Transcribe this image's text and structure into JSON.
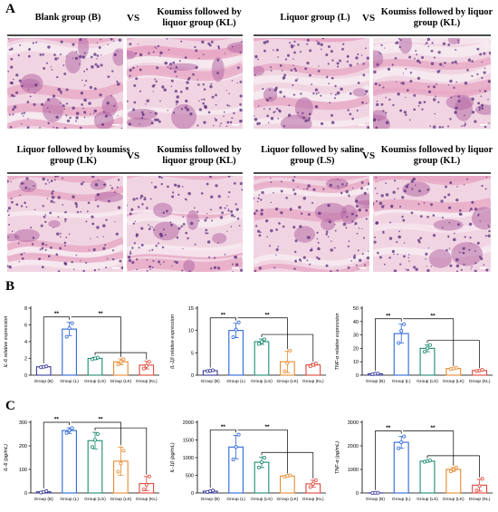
{
  "panels": {
    "A": {
      "letter": "A"
    },
    "B": {
      "letter": "B"
    },
    "C": {
      "letter": "C"
    }
  },
  "histology": {
    "vs_label": "VS",
    "pair1": {
      "left": "Blank group (B)",
      "right": "Koumiss followed by liquor group (KL)"
    },
    "pair2": {
      "left": "Liquor group (L)",
      "right": "Koumiss followed by liquor group (KL)"
    },
    "pair3": {
      "left": "Liquor followed by koumiss group (LK)",
      "right": "Koumiss followed by liquor group (KL)"
    },
    "pair4": {
      "left": "Liquor followed by saline group (LS)",
      "right": "Koumiss followed by liquor group (KL)"
    }
  },
  "colors": {
    "B": "#3b3b9a",
    "L": "#2c66d9",
    "LS": "#1e8c72",
    "LK": "#e88a2e",
    "KL": "#e0483a"
  },
  "chart_data": [
    {
      "id": "il6_expr",
      "type": "bar",
      "categories": [
        "Group (B)",
        "Group (L)",
        "Group (LS)",
        "Group (LK)",
        "Group (KL)"
      ],
      "values": [
        1.0,
        5.5,
        2.0,
        1.6,
        1.2
      ],
      "errors": [
        0.1,
        0.8,
        0.15,
        0.35,
        0.45
      ],
      "points": [
        [
          0.95,
          1.0,
          1.05
        ],
        [
          4.6,
          5.6,
          6.2
        ],
        [
          1.9,
          2.0,
          2.1
        ],
        [
          1.3,
          1.6,
          1.9
        ],
        [
          0.8,
          1.1,
          1.6
        ]
      ],
      "ylabel": "IL-6 relative expression",
      "ylim": [
        0,
        8
      ],
      "yticks": [
        0,
        2,
        4,
        6,
        8
      ],
      "sig_label": "**"
    },
    {
      "id": "il1b_expr",
      "type": "bar",
      "categories": [
        "Group (B)",
        "Group (L)",
        "Group (LS)",
        "Group (LK)",
        "Group (KL)"
      ],
      "values": [
        1.0,
        10.0,
        7.5,
        3.0,
        2.3
      ],
      "errors": [
        0.1,
        1.6,
        0.6,
        2.4,
        0.3
      ],
      "points": [
        [
          0.9,
          1.0,
          1.1
        ],
        [
          8.5,
          10.2,
          11.8
        ],
        [
          7.0,
          7.4,
          8.0
        ],
        [
          0.8,
          2.7,
          5.5
        ],
        [
          2.0,
          2.3,
          2.6
        ]
      ],
      "ylabel": "IL-1β relative expression",
      "ylim": [
        0,
        15
      ],
      "yticks": [
        0,
        5,
        10,
        15
      ],
      "sig_label": "**"
    },
    {
      "id": "tnfa_expr",
      "type": "bar",
      "categories": [
        "Group (B)",
        "Group (L)",
        "Group (LS)",
        "Group (LK)",
        "Group (KL)"
      ],
      "values": [
        1.0,
        31.0,
        20.0,
        5.0,
        3.5
      ],
      "errors": [
        0.2,
        7.0,
        2.5,
        0.5,
        0.5
      ],
      "points": [
        [
          0.8,
          1.0,
          1.2
        ],
        [
          24,
          33,
          38
        ],
        [
          17.5,
          20,
          22.5
        ],
        [
          4.6,
          5.0,
          5.4
        ],
        [
          3.0,
          3.5,
          4.0
        ]
      ],
      "ylabel": "TNF-α relative expression",
      "ylim": [
        0,
        50
      ],
      "yticks": [
        0,
        10,
        20,
        30,
        40,
        50
      ],
      "sig_label": "**"
    },
    {
      "id": "il6_pg",
      "type": "bar",
      "categories": [
        "Group (B)",
        "Group (L)",
        "Group (LS)",
        "Group (LK)",
        "Group (KL)"
      ],
      "values": [
        5,
        265,
        222,
        135,
        40
      ],
      "errors": [
        3,
        12,
        35,
        60,
        30
      ],
      "points": [
        [
          2,
          5,
          8
        ],
        [
          255,
          265,
          275
        ],
        [
          195,
          225,
          250
        ],
        [
          90,
          125,
          180
        ],
        [
          15,
          35,
          70
        ]
      ],
      "ylabel": "IL-6 (pg/mL)",
      "ylim": [
        0,
        300
      ],
      "yticks": [
        0,
        100,
        200,
        300
      ],
      "sig_label": "**"
    },
    {
      "id": "il1b_pg",
      "type": "bar",
      "categories": [
        "Group (B)",
        "Group (L)",
        "Group (LS)",
        "Group (LK)",
        "Group (KL)"
      ],
      "values": [
        50,
        1300,
        870,
        480,
        260
      ],
      "errors": [
        20,
        330,
        150,
        20,
        100
      ],
      "points": [
        [
          30,
          50,
          70
        ],
        [
          950,
          1300,
          1650
        ],
        [
          720,
          870,
          1000
        ],
        [
          460,
          480,
          500
        ],
        [
          170,
          260,
          360
        ]
      ],
      "ylabel": "IL-1β (pg/mL)",
      "ylim": [
        0,
        2000
      ],
      "yticks": [
        0,
        500,
        1000,
        1500,
        2000
      ],
      "sig_label": "**"
    },
    {
      "id": "tnfa_pg",
      "type": "bar",
      "categories": [
        "Group (B)",
        "Group (L)",
        "Group (LS)",
        "Group (LK)",
        "Group (KL)"
      ],
      "values": [
        5,
        2150,
        1350,
        1000,
        330
      ],
      "errors": [
        5,
        250,
        40,
        80,
        250
      ],
      "points": [
        [
          0,
          5,
          10
        ],
        [
          1900,
          2150,
          2400
        ],
        [
          1320,
          1350,
          1380
        ],
        [
          920,
          1000,
          1080
        ],
        [
          100,
          300,
          600
        ]
      ],
      "ylabel": "TNF-α (pg/mL)",
      "ylim": [
        0,
        3000
      ],
      "yticks": [
        0,
        1000,
        2000,
        3000
      ],
      "sig_label": "**"
    }
  ]
}
